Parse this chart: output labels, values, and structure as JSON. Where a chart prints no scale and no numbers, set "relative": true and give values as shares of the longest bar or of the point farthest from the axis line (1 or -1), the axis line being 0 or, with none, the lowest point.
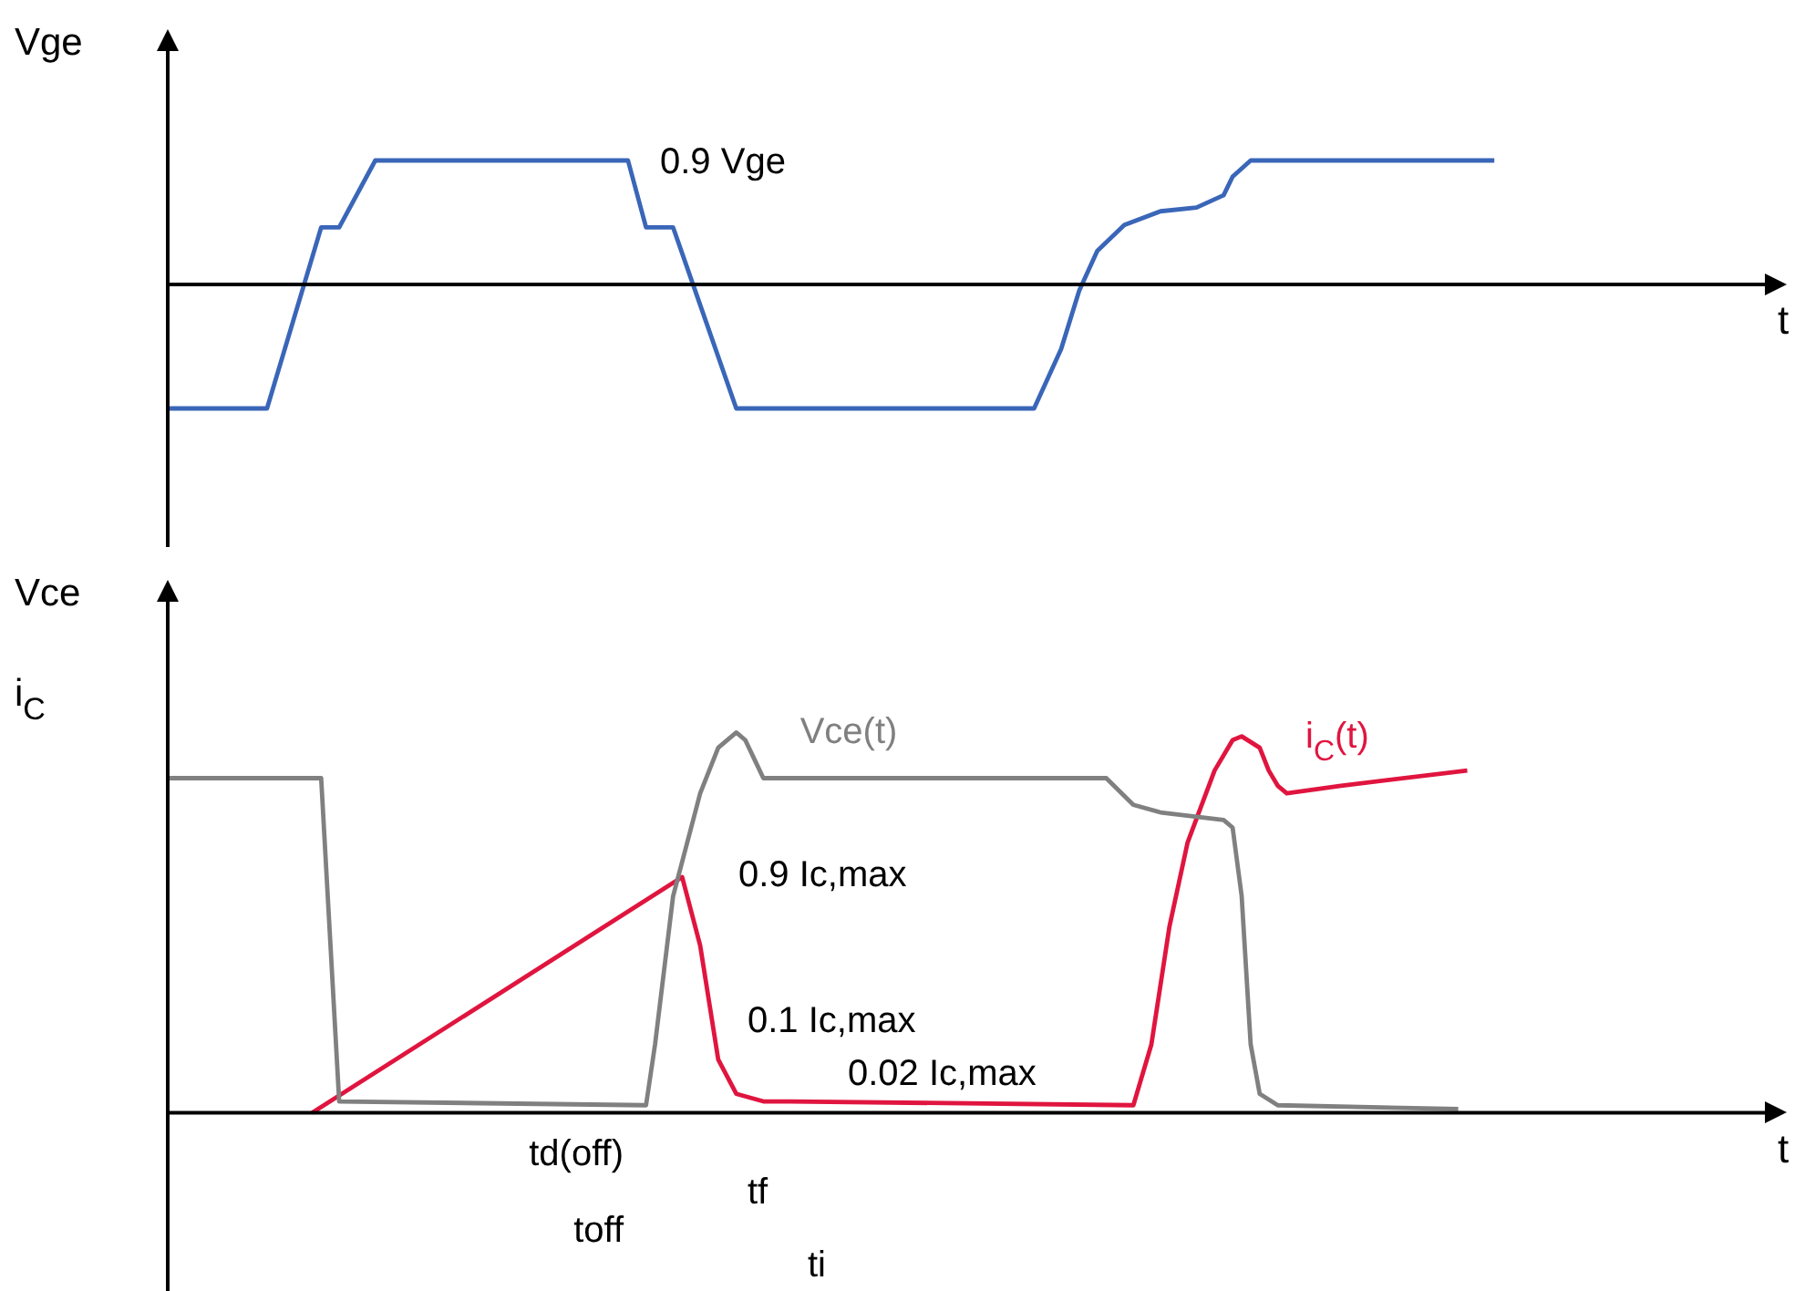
{
  "chart_data": [
    {
      "type": "line",
      "relative": true,
      "ylabel": "Vge",
      "xlabel": "t",
      "annotations": [
        "0.9 Vge"
      ],
      "categories": [
        null,
        null,
        null,
        null,
        null,
        null,
        null,
        null,
        null,
        null,
        null,
        null,
        null,
        null,
        null,
        null,
        null,
        null,
        null,
        null,
        null,
        null,
        null,
        null,
        null,
        null,
        null,
        null,
        null,
        null,
        null,
        null,
        null,
        null,
        null,
        null,
        null,
        null,
        null,
        null,
        null,
        null,
        null,
        null,
        null,
        null,
        null,
        null,
        null,
        null,
        null,
        null,
        null,
        null,
        null,
        null,
        null,
        null,
        null,
        null,
        null,
        null,
        null,
        null,
        null,
        null,
        null,
        null,
        null,
        null,
        null,
        null,
        null,
        null,
        null,
        null,
        null,
        null,
        null,
        null,
        null,
        null,
        null,
        null,
        null,
        null,
        null,
        null,
        null,
        null,
        null,
        null,
        null,
        null,
        null,
        null,
        null,
        null,
        null,
        null,
        null,
        null,
        null,
        null,
        null,
        null,
        null,
        null,
        null,
        null,
        null,
        null,
        null,
        null,
        null,
        null,
        null,
        null,
        null,
        null,
        null,
        null,
        null,
        null,
        null,
        null,
        null,
        null,
        null,
        null,
        null,
        null,
        null,
        null,
        null,
        null,
        null,
        null,
        null,
        null,
        null,
        null,
        null,
        null,
        null,
        null,
        null,
        null,
        null,
        null,
        null,
        null,
        null,
        null,
        null,
        null,
        null,
        null,
        null,
        null,
        null,
        null,
        null,
        null,
        null,
        null,
        null,
        null,
        null,
        null,
        null,
        null,
        null,
        null,
        null,
        null,
        null,
        null,
        null,
        null
      ],
      "series": [
        {
          "color": "#3a66b8",
          "values": [
            -1,
            null,
            null,
            null,
            null,
            null,
            null,
            null,
            null,
            null,
            null,
            -1,
            null,
            null,
            null,
            null,
            null,
            0.46,
            null,
            0.46,
            null,
            null,
            null,
            1,
            null,
            null,
            null,
            null,
            null,
            null,
            null,
            null,
            null,
            null,
            null,
            null,
            null,
            null,
            null,
            null,
            null,
            null,
            null,
            null,
            null,
            null,
            null,
            null,
            null,
            null,
            null,
            1,
            null,
            0.46,
            null,
            null,
            0.46,
            null,
            null,
            null,
            null,
            null,
            null,
            -1,
            null,
            null,
            null,
            null,
            null,
            null,
            null,
            null,
            null,
            null,
            null,
            null,
            null,
            null,
            null,
            null,
            null,
            null,
            null,
            null,
            null,
            null,
            null,
            null,
            null,
            null,
            null,
            null,
            null,
            null,
            null,
            null,
            -1,
            null,
            null,
            -0.52,
            null,
            -0.05,
            null,
            0.27,
            null,
            null,
            0.48,
            null,
            null,
            null,
            0.59,
            null,
            null,
            null,
            0.62,
            null,
            null,
            0.72,
            0.87,
            null,
            1,
            null,
            null,
            null,
            null,
            null,
            null,
            null,
            null,
            null,
            null,
            null,
            null,
            null,
            null,
            null,
            null,
            null,
            null,
            null,
            null,
            null,
            null,
            null,
            null,
            null,
            null,
            1,
            null,
            null,
            null,
            null,
            null,
            null,
            null,
            null,
            null,
            null,
            null,
            null,
            null,
            null,
            null,
            null,
            null,
            null,
            null,
            null,
            null,
            null,
            null,
            null,
            null,
            null,
            null,
            null,
            null,
            null,
            null,
            null
          ]
        }
      ]
    },
    {
      "type": "line",
      "relative": true,
      "ylabel": "Vce\ni$_{C}$",
      "xlabel": "t",
      "annotations": [
        "0.9 Ic,max",
        "0.1 Ic,max",
        "0.02 Ic,max",
        "td(off)",
        "tf",
        "toff",
        "ti"
      ],
      "categories": [
        null,
        null,
        null,
        null,
        null,
        null,
        null,
        null,
        null,
        null,
        null,
        null,
        null,
        null,
        null,
        null,
        null,
        null,
        null,
        null,
        null,
        null,
        null,
        null,
        null,
        null,
        null,
        null,
        null,
        null,
        null,
        null,
        null,
        null,
        null,
        null,
        null,
        null,
        null,
        null,
        null,
        null,
        null,
        null,
        null,
        null,
        null,
        null,
        null,
        null,
        null,
        null,
        null,
        null,
        null,
        null,
        null,
        null,
        null,
        null,
        null,
        null,
        null,
        null,
        null,
        null,
        null,
        null,
        null,
        null,
        null,
        null,
        null,
        null,
        null,
        null,
        null,
        null,
        null,
        null,
        null,
        null,
        null,
        null,
        null,
        null,
        null,
        null,
        null,
        null,
        null,
        null,
        null,
        null,
        null,
        null,
        null,
        null,
        null,
        null,
        null,
        null,
        null,
        null,
        null,
        null,
        null,
        null,
        null,
        null,
        null,
        null,
        null,
        null,
        null,
        null,
        null,
        null,
        null,
        null,
        null,
        null,
        null,
        null,
        null,
        null,
        null,
        null,
        null,
        null,
        null,
        null,
        null,
        null,
        null,
        null,
        null,
        null,
        null,
        null,
        null,
        null,
        null,
        null,
        null,
        null,
        null,
        null,
        null,
        null,
        null,
        null,
        null,
        null,
        null,
        null,
        null,
        null,
        null,
        null,
        null,
        null,
        null,
        null,
        null,
        null,
        null,
        null,
        null,
        null,
        null,
        null,
        null,
        null,
        null,
        null,
        null,
        null,
        null,
        null
      ],
      "series": [
        {
          "name": "Vce(t)",
          "color": "#808080",
          "values": [
            0.88,
            null,
            null,
            null,
            null,
            null,
            null,
            null,
            null,
            null,
            null,
            null,
            null,
            null,
            null,
            null,
            null,
            0.88,
            null,
            0.03,
            null,
            null,
            null,
            null,
            null,
            null,
            null,
            null,
            null,
            null,
            null,
            null,
            null,
            null,
            null,
            null,
            null,
            null,
            null,
            null,
            null,
            null,
            null,
            null,
            null,
            null,
            null,
            null,
            null,
            null,
            null,
            null,
            null,
            0.02,
            0.18,
            null,
            0.57,
            null,
            null,
            0.84,
            null,
            0.96,
            null,
            1,
            0.98,
            0.93,
            0.88,
            null,
            null,
            null,
            null,
            null,
            null,
            null,
            null,
            null,
            null,
            null,
            null,
            null,
            null,
            null,
            null,
            null,
            null,
            null,
            null,
            null,
            null,
            null,
            null,
            null,
            null,
            null,
            null,
            null,
            null,
            null,
            null,
            null,
            null,
            null,
            null,
            null,
            0.88,
            null,
            null,
            0.81,
            null,
            null,
            0.79,
            null,
            null,
            null,
            null,
            null,
            null,
            0.77,
            0.75,
            0.57,
            0.18,
            0.05,
            null,
            0.02,
            null,
            null,
            null,
            null,
            null,
            null,
            null,
            null,
            null,
            null,
            null,
            null,
            null,
            null,
            null,
            null,
            null,
            null,
            null,
            0.01,
            null,
            null,
            null,
            null,
            null,
            null,
            null,
            null,
            null,
            null,
            null,
            null,
            null,
            null,
            null,
            null,
            null,
            null,
            null,
            null,
            null,
            null,
            null,
            null,
            null,
            null,
            null,
            null,
            null,
            null,
            null,
            null,
            null,
            null,
            null,
            null
          ]
        },
        {
          "name": "i$_{C}$(t)",
          "color": "#e0153f",
          "values": [
            null,
            null,
            null,
            null,
            null,
            null,
            null,
            null,
            null,
            null,
            null,
            null,
            null,
            null,
            null,
            null,
            0,
            null,
            null,
            null,
            null,
            null,
            null,
            null,
            null,
            null,
            null,
            null,
            null,
            null,
            null,
            null,
            null,
            null,
            null,
            null,
            null,
            null,
            null,
            null,
            null,
            null,
            null,
            null,
            null,
            null,
            null,
            null,
            null,
            null,
            null,
            null,
            null,
            null,
            null,
            null,
            null,
            0.62,
            null,
            0.44,
            null,
            0.14,
            null,
            0.05,
            null,
            null,
            0.03,
            null,
            null,
            0.03,
            null,
            null,
            null,
            null,
            null,
            null,
            null,
            null,
            null,
            null,
            null,
            null,
            null,
            null,
            null,
            null,
            null,
            null,
            null,
            null,
            null,
            null,
            null,
            null,
            null,
            null,
            null,
            null,
            null,
            null,
            null,
            null,
            null,
            null,
            null,
            null,
            null,
            0.02,
            null,
            0.18,
            null,
            0.49,
            null,
            0.71,
            null,
            null,
            0.9,
            null,
            0.98,
            0.99,
            null,
            0.96,
            0.9,
            0.86,
            0.84,
            null,
            null,
            null,
            null,
            null,
            0.86,
            null,
            null,
            null,
            null,
            null,
            null,
            null,
            null,
            null,
            null,
            null,
            null,
            null,
            0.9,
            null,
            null,
            null,
            null,
            null,
            null,
            null,
            null,
            null,
            null,
            null,
            null,
            null,
            null,
            null,
            null,
            null,
            null,
            null,
            null,
            null,
            null,
            null,
            null,
            null,
            null,
            null,
            null,
            null,
            null,
            null,
            null,
            null,
            null,
            null
          ]
        }
      ]
    }
  ]
}
